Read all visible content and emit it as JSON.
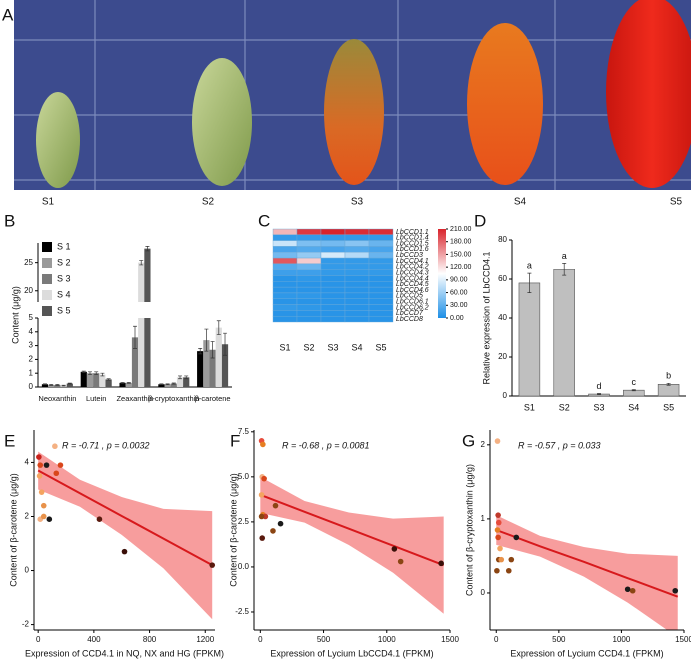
{
  "panel_a": {
    "label": "A",
    "samples": [
      "S1",
      "S2",
      "S3",
      "S4",
      "S5"
    ]
  },
  "chart_data": [
    {
      "type": "bar",
      "panel": "B",
      "ylabel": "Content (μg/g)",
      "categories": [
        "Neoxanthin",
        "Lutein",
        "Zeaxanthin",
        "β-cryptoxanthin",
        "β-carotene"
      ],
      "series": [
        {
          "name": "S 1",
          "color": "#000000",
          "values": [
            0.2,
            1.1,
            0.3,
            0.2,
            2.6
          ],
          "errors": [
            0.03,
            0.05,
            0.03,
            0.03,
            0.2
          ]
        },
        {
          "name": "S 2",
          "color": "#9a9a9a",
          "values": [
            0.15,
            1.0,
            0.3,
            0.2,
            3.4
          ],
          "errors": [
            0.03,
            0.1,
            0.03,
            0.03,
            0.8
          ]
        },
        {
          "name": "S 3",
          "color": "#7a7a7a",
          "values": [
            0.15,
            1.0,
            3.6,
            0.25,
            2.7
          ],
          "errors": [
            0.03,
            0.1,
            0.8,
            0.04,
            0.6
          ]
        },
        {
          "name": "S 4",
          "color": "#dcdcdc",
          "values": [
            0.1,
            0.9,
            25,
            0.7,
            4.3
          ],
          "errors": [
            0.03,
            0.1,
            0.4,
            0.1,
            0.5
          ]
        },
        {
          "name": "S 5",
          "color": "#555555",
          "values": [
            0.25,
            0.55,
            27.5,
            0.7,
            3.1
          ],
          "errors": [
            0.03,
            0.05,
            0.4,
            0.1,
            0.8
          ]
        }
      ],
      "ylim": [
        0,
        5
      ],
      "yticks": [
        0,
        1,
        2,
        3,
        4,
        5
      ],
      "y_break": {
        "ylim": [
          18,
          28.5
        ],
        "yticks": [
          20,
          25
        ]
      },
      "legend": "upper left"
    },
    {
      "type": "heatmap",
      "panel": "C",
      "rows": [
        "LbCCD1.1",
        "LbCCD1.4",
        "LbCCD1.5",
        "LbCCD1.6",
        "LbCCD3",
        "LbCCD4.1",
        "LbCCD4.2",
        "LbCCD4.3",
        "LbCCD4.4",
        "LbCCD4.5",
        "LbCCD4.6",
        "LbCCD5",
        "LbCCD6.1",
        "LbCCD6.2",
        "LbCCD7",
        "LbCCD8"
      ],
      "columns": [
        "S1",
        "S2",
        "S3",
        "S4",
        "S5"
      ],
      "values": [
        [
          140,
          200,
          210,
          205,
          205
        ],
        [
          10,
          10,
          10,
          10,
          10
        ],
        [
          80,
          45,
          40,
          50,
          35
        ],
        [
          20,
          25,
          20,
          25,
          20
        ],
        [
          40,
          55,
          85,
          70,
          35
        ],
        [
          185,
          130,
          10,
          10,
          10
        ],
        [
          25,
          35,
          10,
          10,
          10
        ],
        [
          15,
          15,
          10,
          10,
          10
        ],
        [
          5,
          8,
          5,
          5,
          5
        ],
        [
          5,
          5,
          5,
          5,
          5
        ],
        [
          5,
          5,
          5,
          5,
          5
        ],
        [
          8,
          8,
          5,
          5,
          5
        ],
        [
          5,
          5,
          5,
          5,
          5
        ],
        [
          10,
          8,
          5,
          5,
          5
        ],
        [
          5,
          5,
          5,
          5,
          5
        ],
        [
          5,
          5,
          5,
          5,
          5
        ]
      ],
      "colorbar": {
        "lim": [
          0,
          210
        ],
        "colors": [
          "#1e8fe6",
          "#ffffff",
          "#d9232b"
        ],
        "ticks": [
          {
            "value": 0,
            "label": "0.00"
          },
          {
            "value": 30,
            "label": "30.00"
          },
          {
            "value": 60,
            "label": "60.00"
          },
          {
            "value": 90,
            "label": "90.00"
          },
          {
            "value": 120,
            "label": "120.00"
          },
          {
            "value": 150,
            "label": "150.00"
          },
          {
            "value": 180,
            "label": "180.00"
          },
          {
            "value": 210,
            "label": "210.00"
          }
        ]
      }
    },
    {
      "type": "bar",
      "panel": "D",
      "ylabel": "Relative expression of LbCCD4.1",
      "categories": [
        "S1",
        "S2",
        "S3",
        "S4",
        "S5"
      ],
      "values": [
        58,
        65,
        1,
        3,
        6
      ],
      "errors": [
        5,
        3,
        0.3,
        0.3,
        0.5
      ],
      "annotations": [
        "a",
        "a",
        "d",
        "c",
        "b"
      ],
      "color": "#bfbfbf",
      "ylim": [
        0,
        80
      ],
      "yticks": [
        0,
        20,
        40,
        60,
        80
      ]
    },
    {
      "type": "scatter",
      "panel": "E",
      "annotation": "R = -0.71 , p = 0.0032",
      "xlabel": "Expression of CCD4.1 in NQ, NX and HG (FPKM)",
      "ylabel": "Content of β-carotene (μg/g)",
      "x": [
        5,
        15,
        10,
        25,
        40,
        15,
        40,
        60,
        80,
        120,
        160,
        130,
        440,
        620,
        1250
      ],
      "values": [
        4.2,
        3.9,
        3.5,
        2.9,
        2.4,
        1.9,
        2.0,
        3.9,
        1.9,
        4.6,
        3.9,
        3.6,
        1.9,
        0.7,
        0.2
      ],
      "colors": [
        "#c8211b",
        "#d9461b",
        "#f4a460",
        "#f4a460",
        "#e8924a",
        "#f4b183",
        "#e8924a",
        "#1a1a1a",
        "#1a1a1a",
        "#f4b183",
        "#d9461b",
        "#d9461b",
        "#5a1a0e",
        "#3a0f08",
        "#5a1a0e"
      ],
      "fit": {
        "x": [
          0,
          300,
          600,
          900,
          1250
        ],
        "values": [
          3.7,
          2.86,
          2.02,
          1.18,
          0.2
        ],
        "lower": [
          3.0,
          2.36,
          1.32,
          0.08,
          -1.8
        ],
        "upper": [
          4.4,
          3.36,
          2.72,
          2.28,
          2.2
        ],
        "color": "#d7191c",
        "band_color": "#f47c7c"
      },
      "xlim": [
        -30,
        1270
      ],
      "xticks": [
        0,
        400,
        800,
        1200
      ],
      "ylim": [
        -2.2,
        5.2
      ],
      "yticks": [
        -2,
        0,
        2,
        4
      ]
    },
    {
      "type": "scatter",
      "panel": "F",
      "annotation": "R = -0.68 , p = 0.0081",
      "xlabel": "Expression of Lycium LbCCD4.1 (FPKM)",
      "ylabel": "Content of β-carotene (μg/g)",
      "x": [
        10,
        20,
        15,
        30,
        10,
        20,
        40,
        10,
        15,
        100,
        120,
        160,
        1060,
        1110,
        1430
      ],
      "values": [
        7.0,
        6.8,
        5.0,
        4.9,
        4.0,
        2.9,
        2.8,
        2.8,
        1.6,
        2.0,
        3.4,
        2.4,
        1.0,
        0.3,
        0.2
      ],
      "colors": [
        "#e74c3c",
        "#e67e22",
        "#f4b183",
        "#d9461b",
        "#f4a460",
        "#e67e22",
        "#c0392b",
        "#8b4513",
        "#5a1a0e",
        "#8b4513",
        "#8b4513",
        "#1a1a1a",
        "#3a0f08",
        "#8b4513",
        "#3a0f08"
      ],
      "fit": {
        "x": [
          0,
          350,
          700,
          1050,
          1450
        ],
        "values": [
          4.0,
          3.06,
          2.12,
          1.18,
          0.1
        ],
        "lower": [
          3.0,
          2.46,
          1.22,
          -0.32,
          -2.6
        ],
        "upper": [
          5.0,
          3.66,
          3.02,
          2.68,
          2.8
        ],
        "color": "#d7191c",
        "band_color": "#f47c7c"
      },
      "xlim": [
        -50,
        1500
      ],
      "xticks": [
        0,
        500,
        1000,
        1500
      ],
      "ylim": [
        -3.5,
        7.6
      ],
      "yticks": [
        -2.5,
        {
          "value": 0,
          "label": "0.0"
        },
        2.5,
        {
          "value": 5,
          "label": "5.0"
        },
        7.5
      ]
    },
    {
      "type": "scatter",
      "panel": "G",
      "annotation": "R = -0.57 , p = 0.033",
      "xlabel": "Expression of Lycium CCD4.1 (FPKM)",
      "ylabel": "Content of β-cryptoxanthin (μg/g)",
      "x": [
        10,
        15,
        20,
        10,
        15,
        30,
        20,
        5,
        40,
        120,
        100,
        160,
        1050,
        1090,
        1430
      ],
      "values": [
        2.05,
        1.05,
        0.95,
        0.85,
        0.75,
        0.6,
        0.45,
        0.3,
        0.45,
        0.45,
        0.3,
        0.75,
        0.05,
        0.03,
        0.03
      ],
      "colors": [
        "#f4b183",
        "#c0392b",
        "#e74c3c",
        "#e67e22",
        "#d9461b",
        "#f4a460",
        "#8b4513",
        "#8b4513",
        "#e8924a",
        "#8b4513",
        "#8b4513",
        "#1a1a1a",
        "#1a1a1a",
        "#8b4513",
        "#1a1a1a"
      ],
      "fit": {
        "x": [
          0,
          350,
          700,
          1050,
          1450
        ],
        "values": [
          0.85,
          0.63,
          0.42,
          0.2,
          -0.05
        ],
        "lower": [
          0.65,
          0.49,
          0.22,
          -0.13,
          -0.6
        ],
        "upper": [
          1.05,
          0.77,
          0.62,
          0.53,
          0.5
        ],
        "color": "#d7191c",
        "band_color": "#f47c7c"
      },
      "xlim": [
        -50,
        1500
      ],
      "xticks": [
        0,
        500,
        1000,
        1500
      ],
      "ylim": [
        -0.5,
        2.2
      ],
      "yticks": [
        0,
        1,
        2
      ]
    }
  ]
}
